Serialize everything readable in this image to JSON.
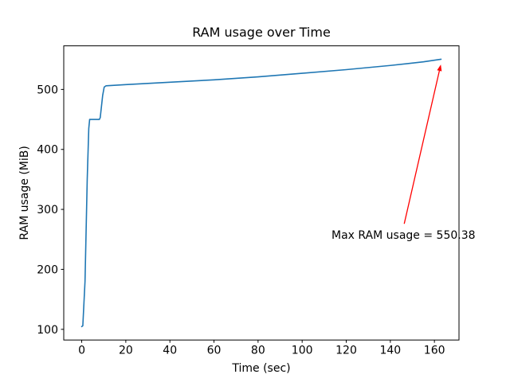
{
  "figure": {
    "background": "#ffffff",
    "frame_color": "#000000"
  },
  "chart_data": {
    "type": "line",
    "title": "RAM usage over Time",
    "xlabel": "Time (sec)",
    "ylabel": "RAM usage (MiB)",
    "xlim": [
      -8.15,
      171.15
    ],
    "ylim": [
      82.2,
      572.7
    ],
    "x_ticks": [
      0,
      20,
      40,
      60,
      80,
      100,
      120,
      140,
      160
    ],
    "y_ticks": [
      100,
      200,
      300,
      400,
      500
    ],
    "grid": false,
    "legend": null,
    "series": [
      {
        "name": "RAM usage",
        "color": "#1f77b4",
        "x": [
          0,
          0.5,
          1.5,
          2.5,
          3.2,
          3.6,
          8.0,
          8.4,
          9.5,
          10.2,
          11,
          20,
          40,
          60,
          80,
          100,
          120,
          140,
          155,
          163
        ],
        "y": [
          104.5,
          106,
          180,
          350,
          435,
          450,
          450,
          453,
          490,
          504,
          506,
          508,
          512,
          516,
          521,
          527,
          533,
          540,
          546,
          550.38
        ]
      }
    ],
    "annotation": {
      "text": "Max RAM usage = 550.38",
      "color": "#ff0000",
      "text_xy": [
        113.3,
        251
      ],
      "arrow_start_xy": [
        146.3,
        276
      ],
      "arrow_end_xy": [
        162.9,
        541.5
      ]
    }
  }
}
